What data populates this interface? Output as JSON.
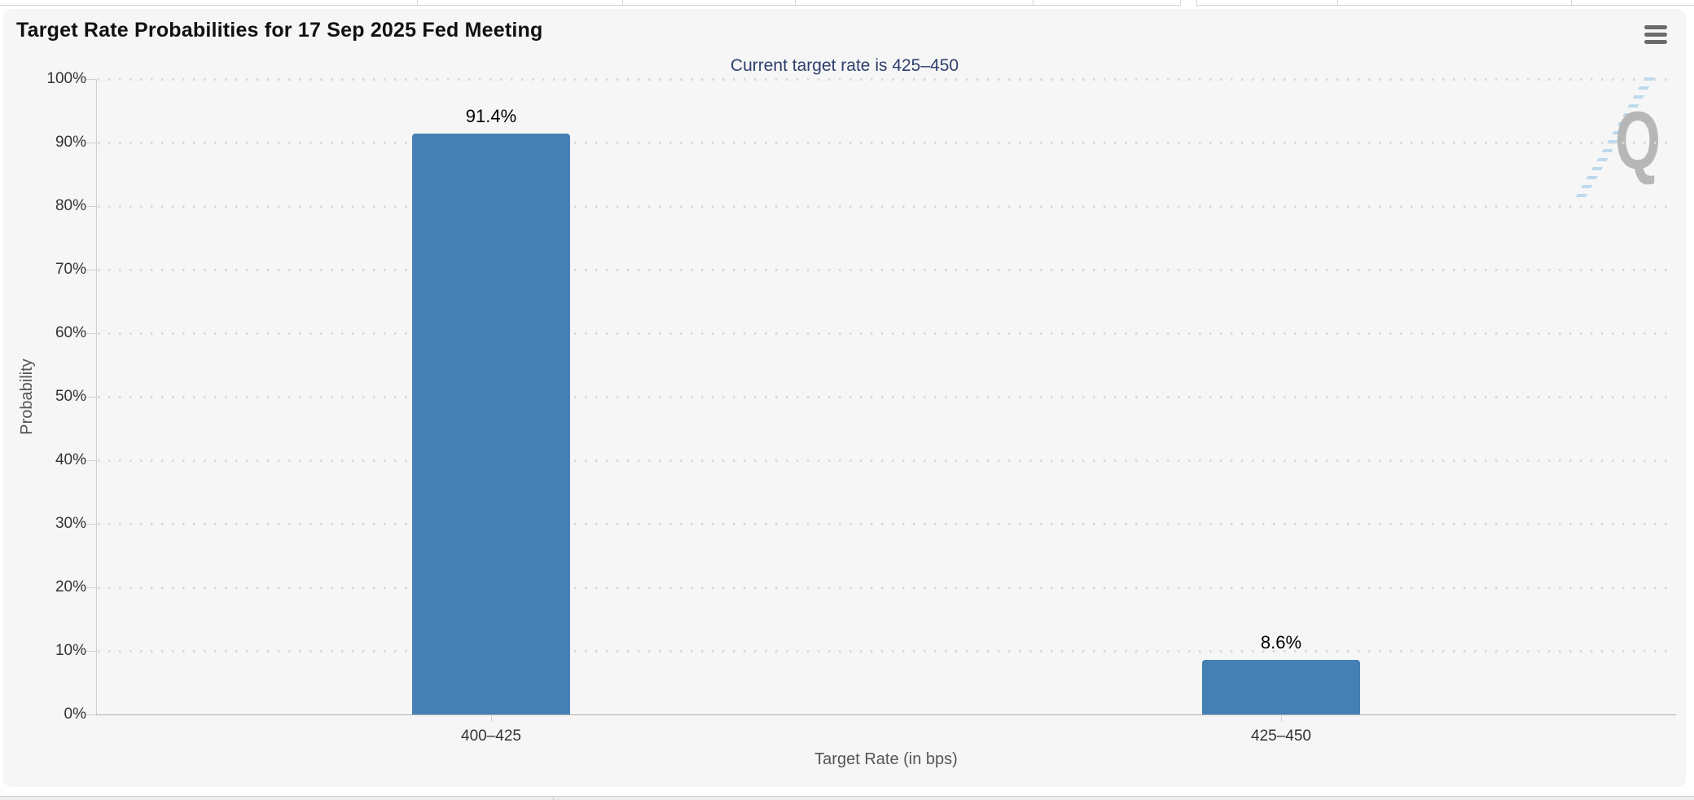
{
  "header": {
    "title": "Target Rate Probabilities for 17 Sep 2025 Fed Meeting",
    "subtitle": "Current target rate is 425–450"
  },
  "icons": {
    "menu": "hamburger-menu-icon",
    "watermark_letter": "Q"
  },
  "chart_data": {
    "type": "bar",
    "title": "Target Rate Probabilities for 17 Sep 2025 Fed Meeting",
    "subtitle": "Current target rate is 425–450",
    "categories": [
      "400–425",
      "425–450"
    ],
    "values": [
      91.4,
      8.6
    ],
    "data_labels": [
      "91.4%",
      "8.6%"
    ],
    "xlabel": "Target Rate (in bps)",
    "ylabel": "Probability",
    "ylim": [
      0,
      100
    ],
    "ytick_step": 10,
    "ytick_labels": [
      "0%",
      "10%",
      "20%",
      "30%",
      "40%",
      "50%",
      "60%",
      "70%",
      "80%",
      "90%",
      "100%"
    ],
    "grid": "horizontal-dotted",
    "legend": "none",
    "bar_color": "#4580b4"
  },
  "colors": {
    "panel_bg": "#f6f6f6",
    "bar": "#4580b4",
    "title_text": "#111111",
    "subtitle_text": "#2f406e",
    "tick_text": "#333333",
    "axis_title_text": "#555555",
    "gridline": "#d9d9d9",
    "y_axis_line": "#cfcfcf",
    "x_axis_line": "#b0b0b0",
    "menu_icon": "#6b6b6b",
    "watermark_gray": "#b2b2b2",
    "watermark_blue": "#aed3ea"
  }
}
